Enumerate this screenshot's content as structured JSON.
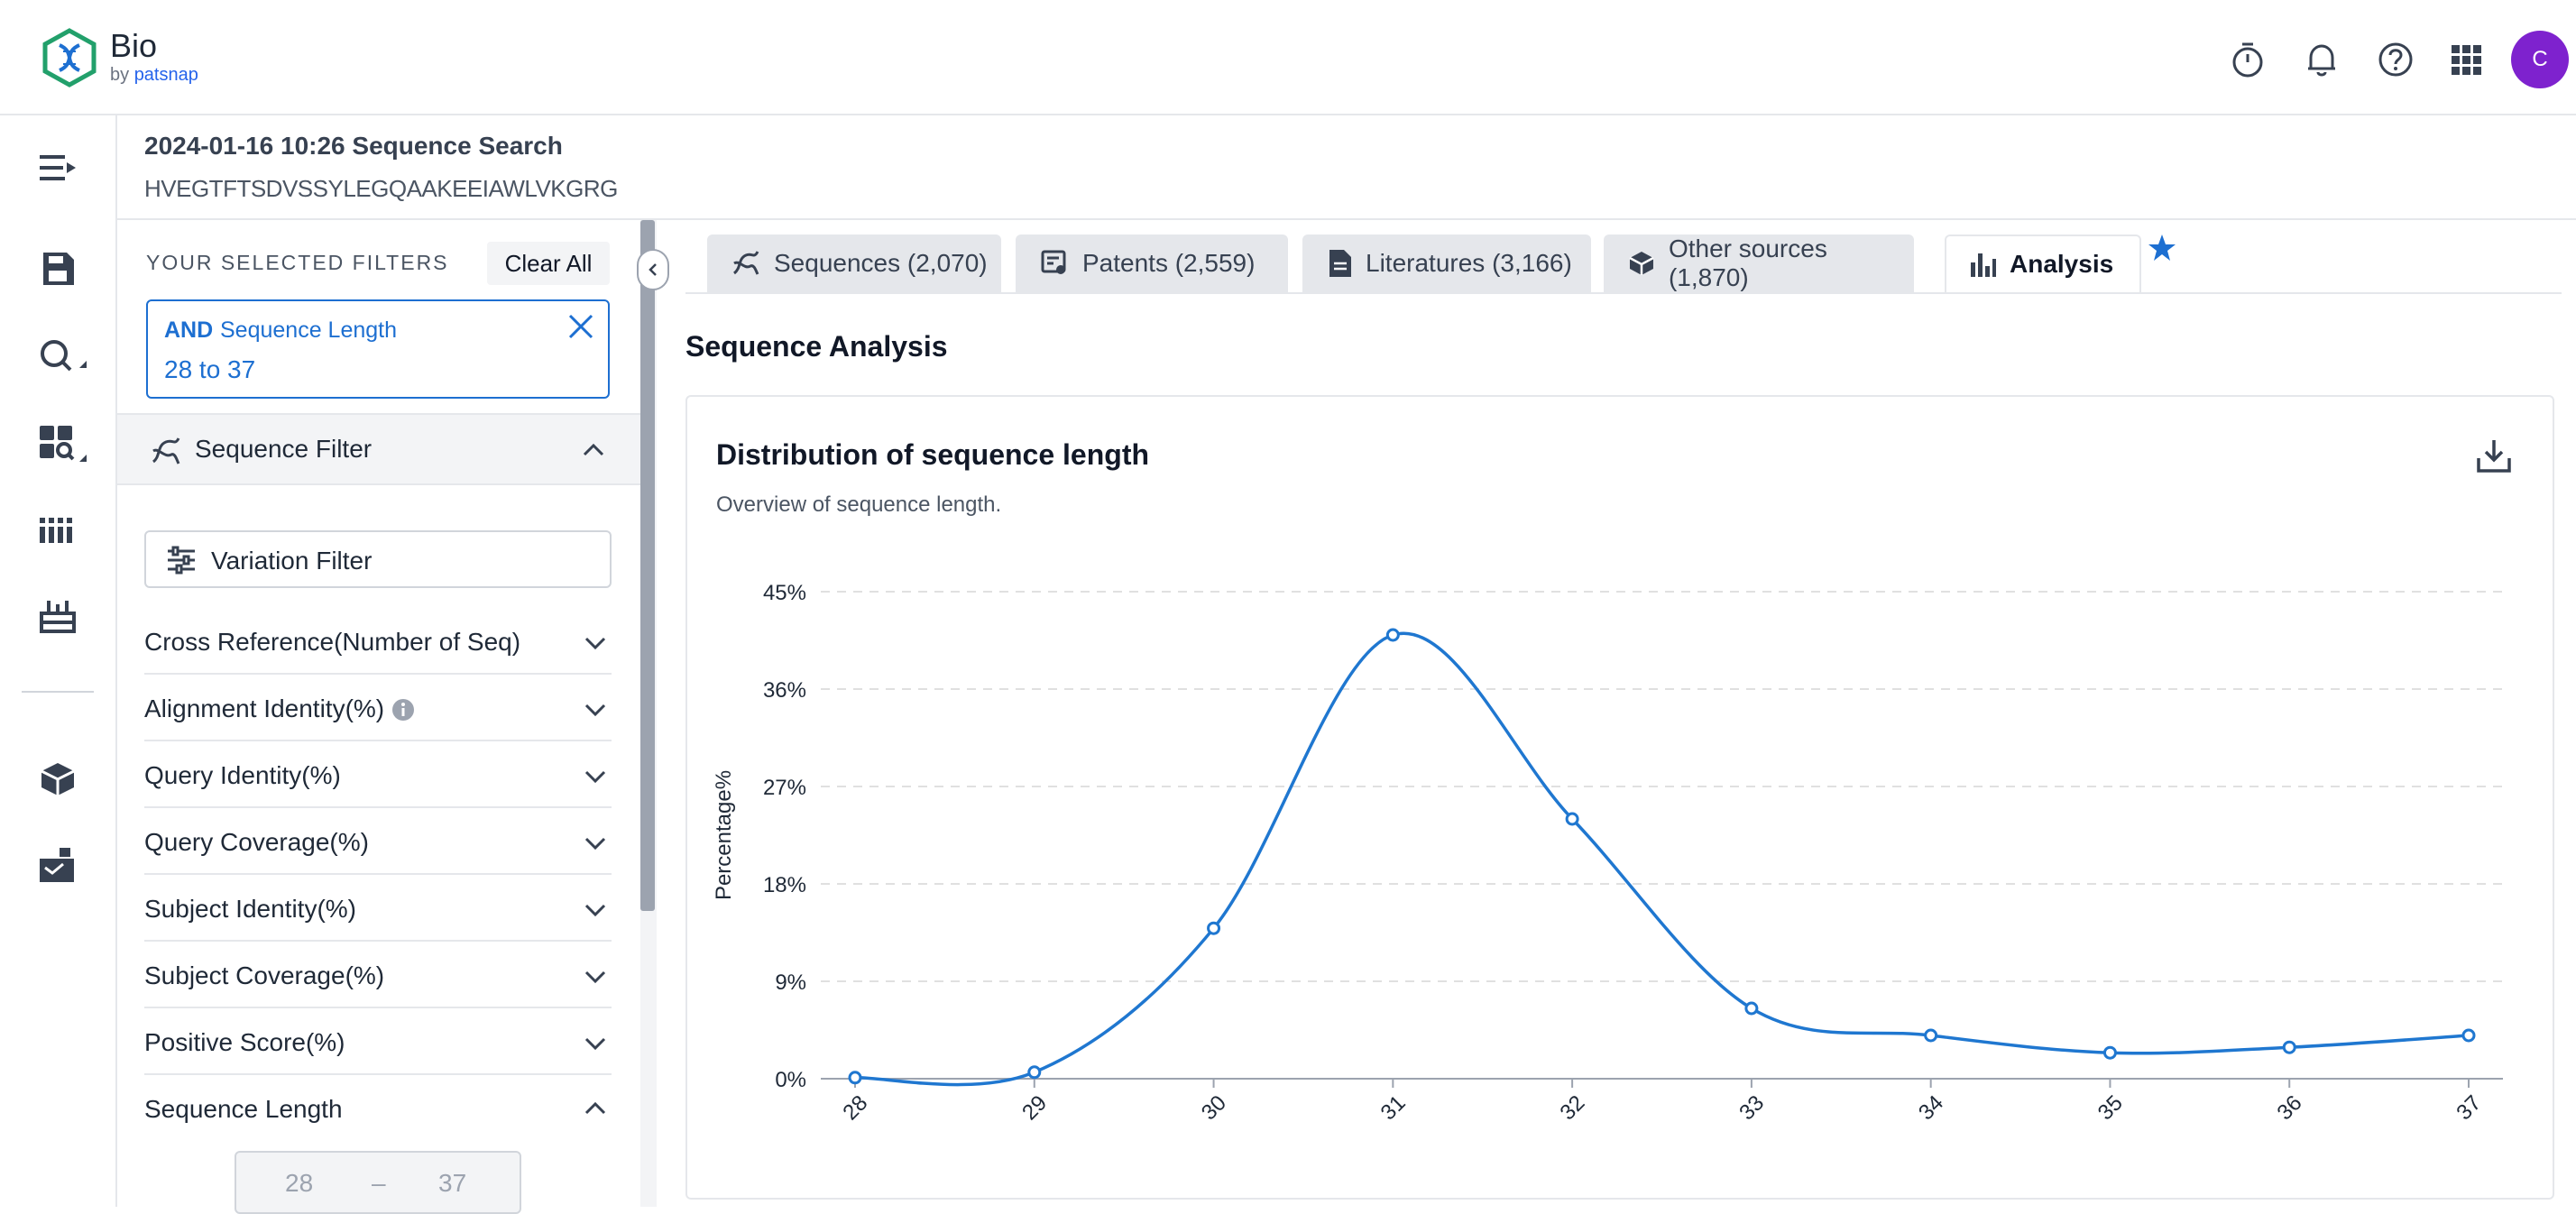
{
  "app": {
    "name": "Bio",
    "by": "by",
    "vendor": "patsnap",
    "avatar_initial": "C",
    "top_icons": [
      "timer-icon",
      "bell-icon",
      "help-icon",
      "apps-grid-icon"
    ]
  },
  "rail": {
    "icons": [
      "menu-expand-icon",
      "save-icon",
      "search-icon",
      "dashboard-icon",
      "barcode-icon",
      "toolbox-icon",
      "cube-icon",
      "inbox-icon"
    ]
  },
  "search": {
    "title": "2024-01-16 10:26 Sequence Search",
    "sequence": "HVEGTFTSDVSSYLEGQAAKEEIAWLVKGRG"
  },
  "filters": {
    "selected_label": "YOUR SELECTED FILTERS",
    "clear_all": "Clear All",
    "chip": {
      "operator": "AND",
      "field": "Sequence Length",
      "value": "28 to 37"
    },
    "sequence_filter": "Sequence Filter",
    "variation_filter": "Variation Filter",
    "facets": [
      {
        "label": "Cross Reference(Number of Seq)",
        "expanded": false
      },
      {
        "label": "Alignment Identity(%)",
        "expanded": false,
        "info": true
      },
      {
        "label": "Query Identity(%)",
        "expanded": false
      },
      {
        "label": "Query Coverage(%)",
        "expanded": false
      },
      {
        "label": "Subject Identity(%)",
        "expanded": false
      },
      {
        "label": "Subject Coverage(%)",
        "expanded": false
      },
      {
        "label": "Positive Score(%)",
        "expanded": false
      },
      {
        "label": "Sequence Length",
        "expanded": true
      }
    ],
    "range": {
      "min": "28",
      "separator": "–",
      "max": "37"
    }
  },
  "tabs": [
    {
      "label": "Sequences (2,070)",
      "icon": "dna-icon",
      "active": false
    },
    {
      "label": "Patents (2,559)",
      "icon": "patent-icon",
      "active": false
    },
    {
      "label": "Literatures (3,166)",
      "icon": "document-icon",
      "active": false
    },
    {
      "label": "Other sources (1,870)",
      "icon": "cube-icon",
      "active": false
    },
    {
      "label": "Analysis",
      "icon": "bar-chart-icon",
      "active": true
    }
  ],
  "analysis": {
    "title": "Sequence Analysis",
    "card_title": "Distribution of sequence length",
    "card_subtitle": "Overview of sequence length."
  },
  "colors": {
    "accent": "#1d6fd1",
    "avatar": "#7e22ce",
    "line": "#1f77d0"
  },
  "chart_data": {
    "type": "line",
    "smooth": true,
    "x": [
      "28",
      "29",
      "30",
      "31",
      "32",
      "33",
      "34",
      "35",
      "36",
      "37"
    ],
    "series": [
      {
        "values": [
          0.1,
          0.6,
          13.9,
          41.0,
          24.0,
          6.5,
          4.0,
          2.4,
          2.9,
          4.0
        ]
      }
    ],
    "ylabel": "Percentage%",
    "yticks": [
      "0%",
      "9%",
      "18%",
      "27%",
      "36%",
      "45%"
    ],
    "ylim": [
      0,
      45
    ],
    "grid": true
  }
}
